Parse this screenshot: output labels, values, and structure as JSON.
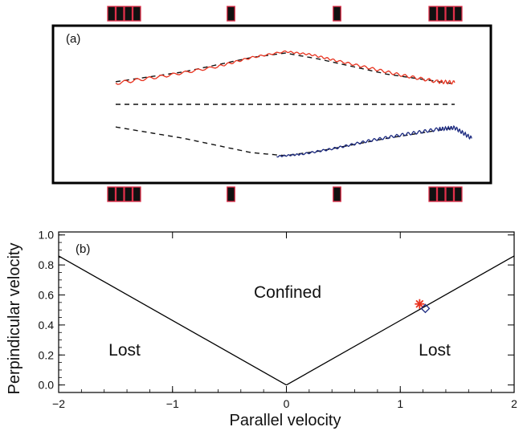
{
  "chart_data": [
    {
      "type": "line",
      "panel_label": "(a)",
      "magnet_groups": {
        "top": [
          4,
          1,
          1,
          4
        ],
        "bottom": [
          4,
          1,
          1,
          4
        ]
      },
      "series": [
        {
          "color": "#e8321e",
          "dashed_guide": [
            [
              -1.0,
              0.3
            ],
            [
              -0.6,
              0.43
            ],
            [
              -0.2,
              0.62
            ],
            [
              0.0,
              0.68
            ],
            [
              0.2,
              0.6
            ],
            [
              0.6,
              0.4
            ],
            [
              1.0,
              0.27
            ]
          ],
          "trajectory": [
            [
              -1.0,
              0.28
            ],
            [
              -0.7,
              0.38
            ],
            [
              -0.4,
              0.5
            ],
            [
              -0.2,
              0.62
            ],
            [
              0.0,
              0.7
            ],
            [
              0.15,
              0.66
            ],
            [
              0.3,
              0.58
            ],
            [
              0.5,
              0.48
            ],
            [
              0.7,
              0.38
            ],
            [
              0.9,
              0.3
            ],
            [
              1.0,
              0.29
            ]
          ]
        },
        {
          "color": "#1c2a80",
          "dashed_guide": [
            [
              -1.0,
              -0.3
            ],
            [
              -0.6,
              -0.45
            ],
            [
              -0.2,
              -0.64
            ],
            [
              0.0,
              -0.68
            ],
            [
              0.2,
              -0.62
            ],
            [
              0.6,
              -0.45
            ],
            [
              1.0,
              -0.31
            ]
          ],
          "trajectory": [
            [
              -0.05,
              -0.69
            ],
            [
              0.1,
              -0.66
            ],
            [
              0.3,
              -0.58
            ],
            [
              0.5,
              -0.48
            ],
            [
              0.7,
              -0.4
            ],
            [
              0.9,
              -0.33
            ],
            [
              1.0,
              -0.31
            ],
            [
              1.1,
              -0.45
            ]
          ]
        }
      ],
      "midline": true
    },
    {
      "type": "scatter",
      "panel_label": "(b)",
      "xlabel": "Parallel velocity",
      "ylabel": "Perpindicular velocity",
      "xlim": [
        -2,
        2
      ],
      "ylim": [
        -0.05,
        1.02
      ],
      "xticks": [
        "−2",
        "−1",
        "0",
        "1",
        "2"
      ],
      "yticks": [
        "0.0",
        "0.2",
        "0.4",
        "0.6",
        "0.8",
        "1.0"
      ],
      "boundary": {
        "slope": 0.43,
        "label_center": "Confined",
        "label_left": "Lost",
        "label_right": "Lost"
      },
      "points": [
        {
          "x": 1.17,
          "y": 0.54,
          "marker": "star",
          "color": "#e8321e"
        },
        {
          "x": 1.22,
          "y": 0.51,
          "marker": "diamond",
          "color": "#1c2a80"
        }
      ]
    }
  ]
}
